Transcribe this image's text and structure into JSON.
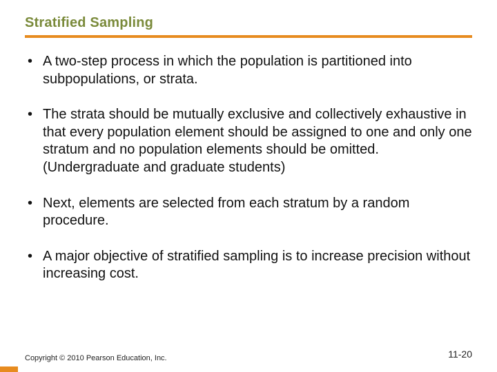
{
  "title": "Stratified Sampling",
  "title_color": "#7a8a3a",
  "underline_color": "#e78b1f",
  "text_color": "#111111",
  "background_color": "#ffffff",
  "title_fontsize": 20,
  "body_fontsize": 20,
  "bullets": [
    "A two-step process in which the population is partitioned into subpopulations, or strata.",
    "The strata should be mutually exclusive and collectively exhaustive in that every population element should be assigned to one and only one stratum and no population elements should be omitted.  (Undergraduate and graduate students)",
    "Next, elements are selected from each stratum by a random procedure.",
    "A major objective of stratified sampling is to increase precision without increasing cost."
  ],
  "footer": "Copyright © 2010 Pearson Education, Inc.",
  "page_number": "11-20",
  "corner_accent_color": "#e78b1f"
}
